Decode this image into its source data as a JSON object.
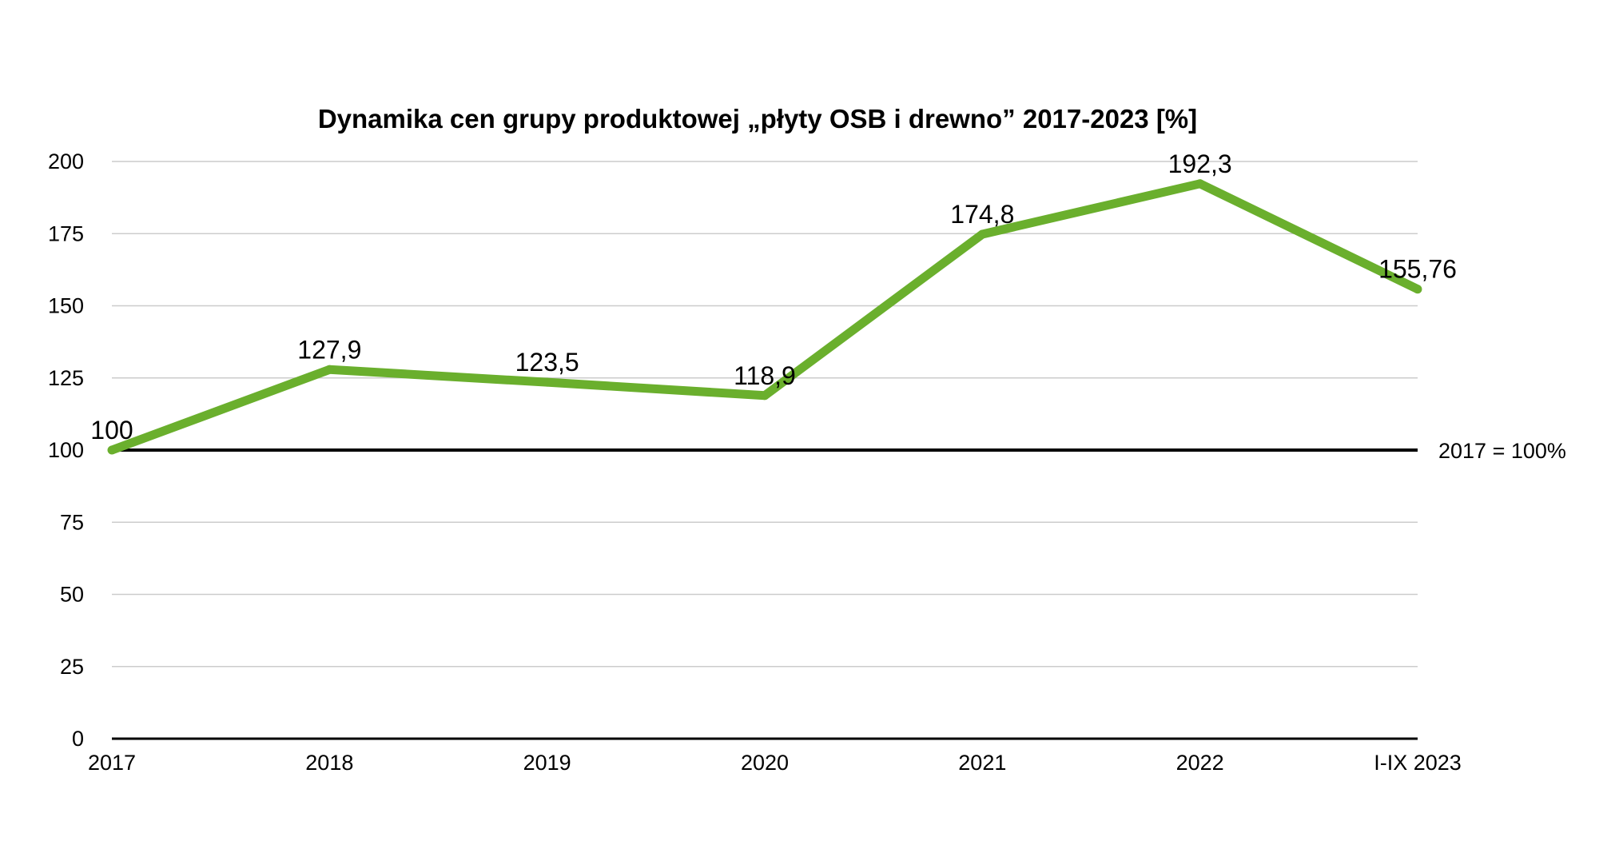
{
  "chart_data": {
    "type": "line",
    "title": "Dynamika cen grupy produktowej „płyty OSB i drewno” 2017-2023 [%]",
    "xlabel": "",
    "ylabel": "",
    "categories": [
      "2017",
      "2018",
      "2019",
      "2020",
      "2021",
      "2022",
      "I-IX 2023"
    ],
    "series": [
      {
        "values": [
          100,
          127.9,
          123.5,
          118.9,
          174.8,
          192.3,
          155.76
        ],
        "labels": [
          "100",
          "127,9",
          "123,5",
          "118,9",
          "174,8",
          "192,3",
          "155,76"
        ],
        "color": "#6aaf2d"
      }
    ],
    "ylim": [
      0,
      200
    ],
    "yticks": [
      0,
      25,
      50,
      75,
      100,
      125,
      150,
      175,
      200
    ],
    "grid": true,
    "legend": "none",
    "reference_line": {
      "value": 100,
      "label": "2017 = 100%",
      "color": "#000000"
    },
    "colors": {
      "grid": "#cccccc",
      "axis": "#000000"
    }
  }
}
